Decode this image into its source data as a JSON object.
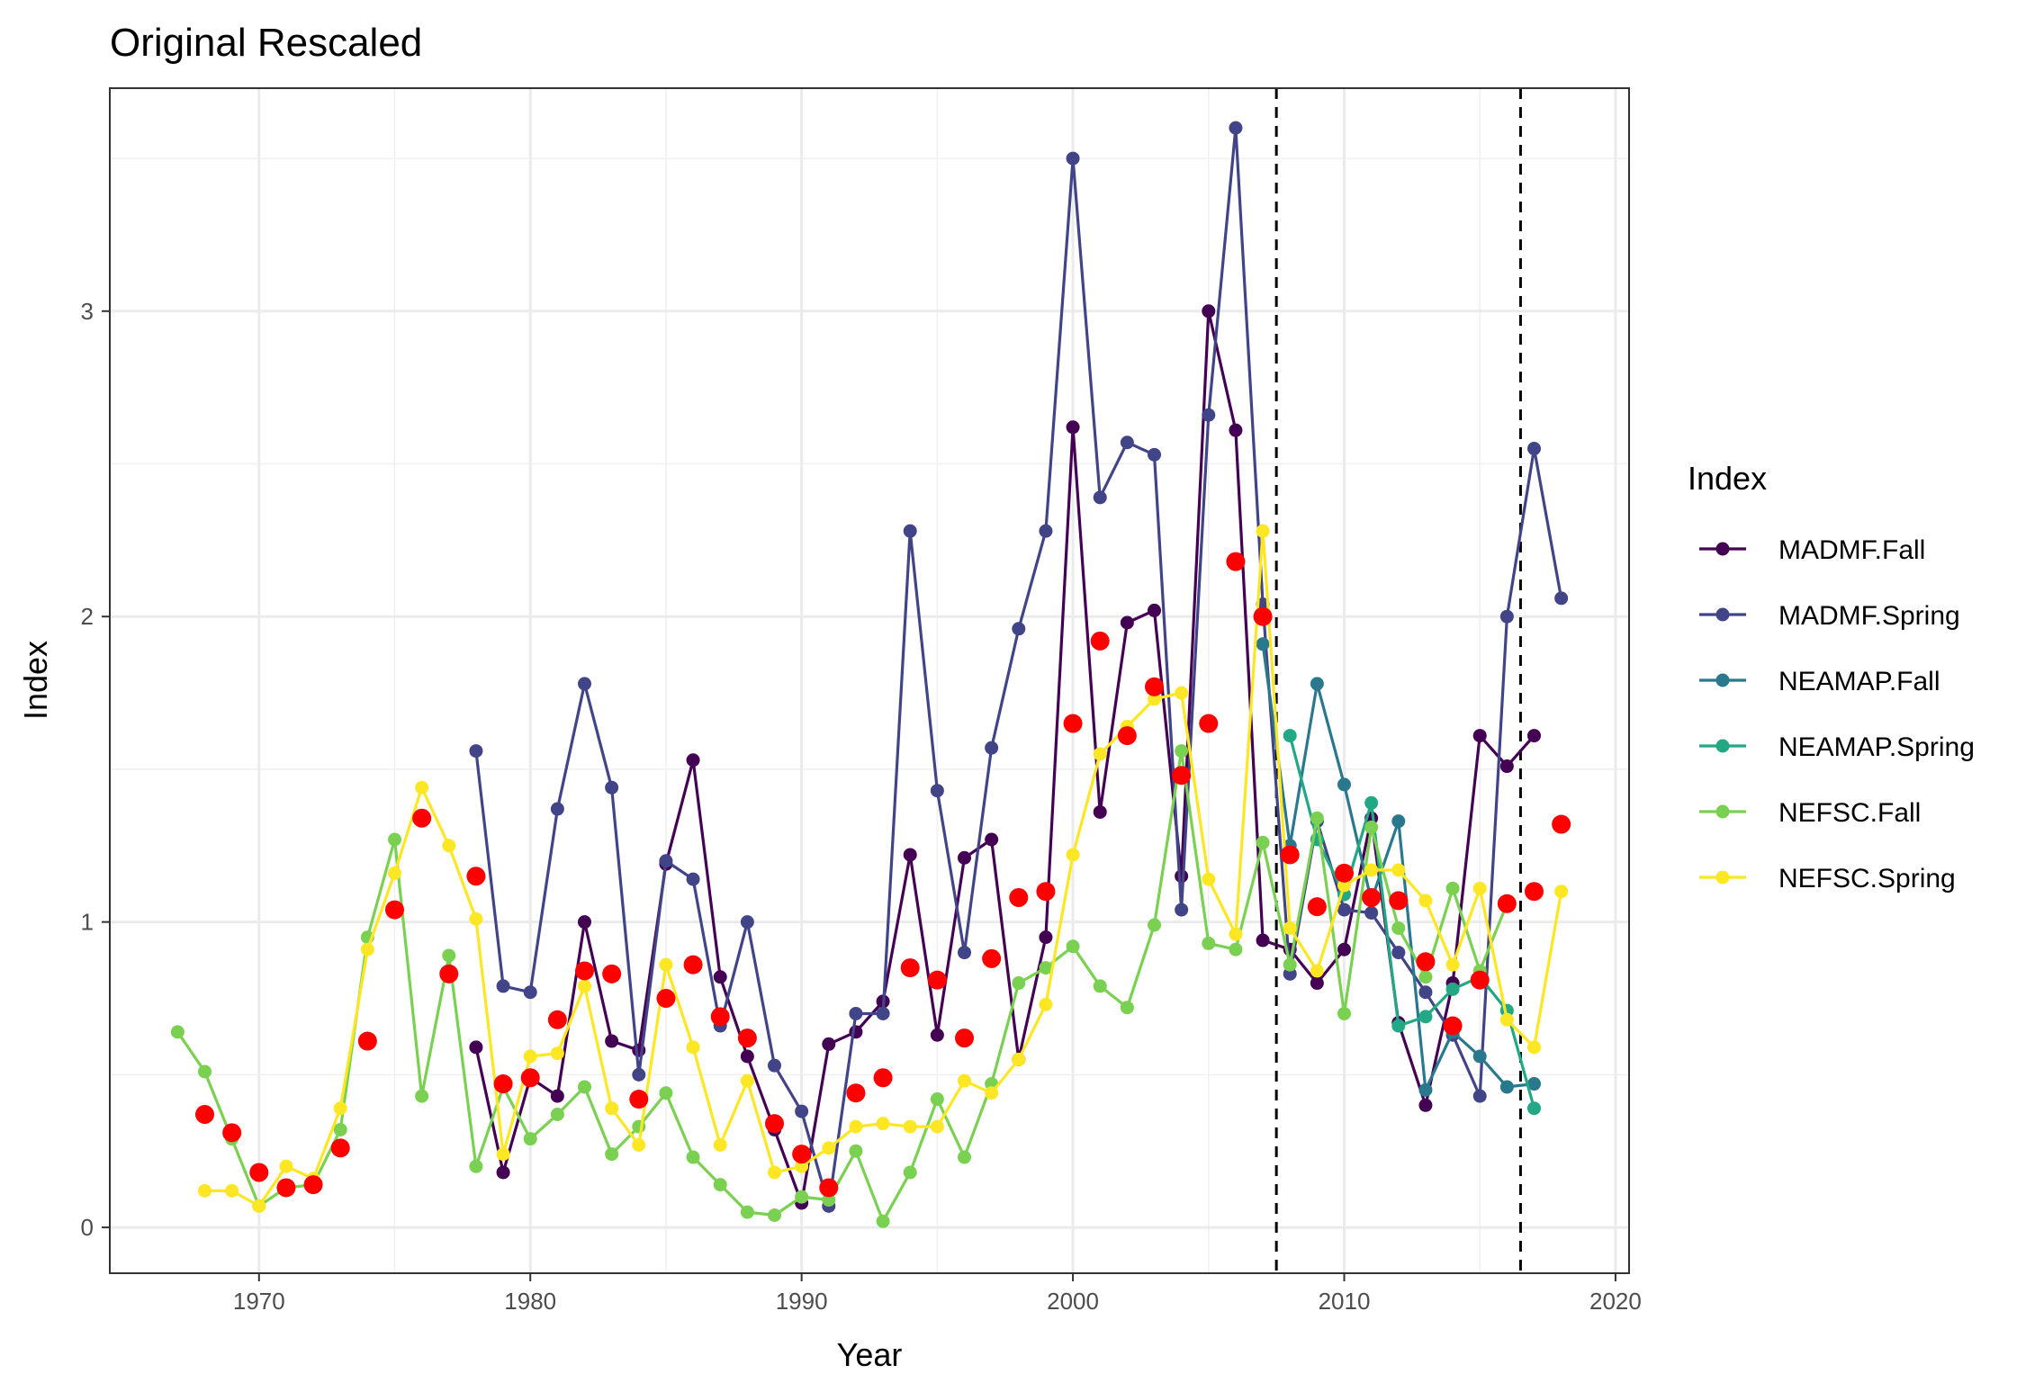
{
  "chart_data": {
    "type": "line",
    "title": "Original Rescaled",
    "xlabel": "Year",
    "ylabel": "Index",
    "xlim": [
      1964.5,
      2020.5
    ],
    "ylim": [
      -0.15,
      3.73
    ],
    "x_ticks": [
      1970,
      1980,
      1990,
      2000,
      2010,
      2020
    ],
    "y_ticks": [
      0,
      1,
      2,
      3
    ],
    "grid": true,
    "vlines": [
      2007.5,
      2016.5
    ],
    "legend": {
      "title": "Index",
      "position": "right",
      "entries": [
        "MADMF.Fall",
        "MADMF.Spring",
        "NEAMAP.Fall",
        "NEAMAP.Spring",
        "NEFSC.Fall",
        "NEFSC.Spring"
      ]
    },
    "series": [
      {
        "name": "MADMF.Fall",
        "color": "#440154",
        "x": [
          1978,
          1979,
          1980,
          1981,
          1982,
          1983,
          1984,
          1985,
          1986,
          1987,
          1988,
          1989,
          1990,
          1991,
          1992,
          1993,
          1994,
          1995,
          1996,
          1997,
          1998,
          1999,
          2000,
          2001,
          2002,
          2003,
          2004,
          2005,
          2006,
          2007,
          2008,
          2009,
          2010,
          2011,
          2012,
          2013,
          2014,
          2015,
          2016,
          2017
        ],
        "y": [
          0.59,
          0.18,
          0.49,
          0.43,
          1.0,
          0.61,
          0.58,
          1.19,
          1.53,
          0.82,
          0.56,
          0.32,
          0.08,
          0.6,
          0.64,
          0.74,
          1.22,
          0.63,
          1.21,
          1.27,
          0.55,
          0.95,
          2.62,
          1.36,
          1.98,
          2.02,
          1.15,
          3.0,
          2.61,
          0.94,
          0.91,
          0.8,
          0.91,
          1.34,
          0.67,
          0.4,
          0.8,
          1.61,
          1.51,
          1.61
        ]
      },
      {
        "name": "MADMF.Spring",
        "color": "#414487",
        "x": [
          1978,
          1979,
          1980,
          1981,
          1982,
          1983,
          1984,
          1985,
          1986,
          1987,
          1988,
          1989,
          1990,
          1991,
          1992,
          1993,
          1994,
          1995,
          1996,
          1997,
          1998,
          1999,
          2000,
          2001,
          2002,
          2003,
          2004,
          2005,
          2006,
          2007,
          2008,
          2009,
          2010,
          2011,
          2012,
          2013,
          2014,
          2015,
          2016,
          2017,
          2018
        ],
        "y": [
          1.56,
          0.79,
          0.77,
          1.37,
          1.78,
          1.44,
          0.5,
          1.2,
          1.14,
          0.66,
          1.0,
          0.53,
          0.38,
          0.07,
          0.7,
          0.7,
          2.28,
          1.43,
          0.9,
          1.57,
          1.96,
          2.28,
          3.5,
          2.39,
          2.57,
          2.53,
          1.04,
          2.66,
          3.6,
          2.04,
          0.83,
          1.33,
          1.04,
          1.03,
          0.9,
          0.77,
          0.63,
          0.43,
          2.0,
          2.55,
          2.06
        ]
      },
      {
        "name": "NEAMAP.Fall",
        "color": "#2A788E",
        "x": [
          2007,
          2008,
          2009,
          2010,
          2011,
          2012,
          2013,
          2014,
          2015,
          2016,
          2017
        ],
        "y": [
          1.91,
          1.25,
          1.78,
          1.45,
          1.07,
          1.33,
          0.45,
          0.64,
          0.56,
          0.46,
          0.47
        ]
      },
      {
        "name": "NEAMAP.Spring",
        "color": "#22A884",
        "x": [
          2008,
          2009,
          2010,
          2011,
          2012,
          2013,
          2014,
          2015,
          2016,
          2017
        ],
        "y": [
          1.61,
          1.27,
          1.09,
          1.39,
          0.66,
          0.69,
          0.78,
          0.82,
          0.71,
          0.39
        ]
      },
      {
        "name": "NEFSC.Fall",
        "color": "#7AD151",
        "x": [
          1967,
          1968,
          1969,
          1970,
          1971,
          1972,
          1973,
          1974,
          1975,
          1976,
          1977,
          1978,
          1979,
          1980,
          1981,
          1982,
          1983,
          1984,
          1985,
          1986,
          1987,
          1988,
          1989,
          1990,
          1991,
          1992,
          1993,
          1994,
          1995,
          1996,
          1997,
          1998,
          1999,
          2000,
          2001,
          2002,
          2003,
          2004,
          2005,
          2006,
          2007,
          2008,
          2009,
          2010,
          2011,
          2012,
          2013,
          2014,
          2015,
          2016
        ],
        "y": [
          0.64,
          0.51,
          0.29,
          0.07,
          0.13,
          0.14,
          0.32,
          0.95,
          1.27,
          0.43,
          0.89,
          0.2,
          0.46,
          0.29,
          0.37,
          0.46,
          0.24,
          0.33,
          0.44,
          0.23,
          0.14,
          0.05,
          0.04,
          0.1,
          0.09,
          0.25,
          0.02,
          0.18,
          0.42,
          0.23,
          0.47,
          0.8,
          0.85,
          0.92,
          0.79,
          0.72,
          0.99,
          1.56,
          0.93,
          0.91,
          1.26,
          0.86,
          1.34,
          0.7,
          1.31,
          0.98,
          0.82,
          1.11,
          0.84,
          1.06
        ]
      },
      {
        "name": "NEFSC.Spring",
        "color": "#FDE725",
        "x": [
          1968,
          1969,
          1970,
          1971,
          1972,
          1973,
          1974,
          1975,
          1976,
          1977,
          1978,
          1979,
          1980,
          1981,
          1982,
          1983,
          1984,
          1985,
          1986,
          1987,
          1988,
          1989,
          1990,
          1991,
          1992,
          1993,
          1994,
          1995,
          1996,
          1997,
          1998,
          1999,
          2000,
          2001,
          2002,
          2003,
          2004,
          2005,
          2006,
          2007,
          2008,
          2009,
          2010,
          2011,
          2012,
          2013,
          2014,
          2015,
          2016,
          2017,
          2018
        ],
        "y": [
          0.12,
          0.12,
          0.07,
          0.2,
          0.16,
          0.39,
          0.91,
          1.16,
          1.44,
          1.25,
          1.01,
          0.24,
          0.56,
          0.57,
          0.79,
          0.39,
          0.27,
          0.86,
          0.59,
          0.27,
          0.48,
          0.18,
          0.2,
          0.26,
          0.33,
          0.34,
          0.33,
          0.33,
          0.48,
          0.44,
          0.55,
          0.73,
          1.22,
          1.55,
          1.64,
          1.73,
          1.75,
          1.14,
          0.96,
          2.28,
          0.98,
          0.84,
          1.12,
          1.17,
          1.17,
          1.07,
          0.86,
          1.11,
          0.68,
          0.59,
          1.1
        ]
      }
    ],
    "mean_points": {
      "color": "#FF0000",
      "x": [
        1968,
        1969,
        1970,
        1971,
        1972,
        1973,
        1974,
        1975,
        1976,
        1977,
        1978,
        1979,
        1980,
        1981,
        1982,
        1983,
        1984,
        1985,
        1986,
        1987,
        1988,
        1989,
        1990,
        1991,
        1992,
        1993,
        1994,
        1995,
        1996,
        1997,
        1998,
        1999,
        2000,
        2001,
        2002,
        2003,
        2004,
        2005,
        2006,
        2007,
        2008,
        2009,
        2010,
        2011,
        2012,
        2013,
        2014,
        2015,
        2016,
        2017,
        2018
      ],
      "y": [
        0.37,
        0.31,
        0.18,
        0.13,
        0.14,
        0.26,
        0.61,
        1.04,
        1.34,
        0.83,
        1.15,
        0.47,
        0.49,
        0.68,
        0.84,
        0.83,
        0.42,
        0.75,
        0.86,
        0.69,
        0.62,
        0.34,
        0.24,
        0.13,
        0.44,
        0.49,
        0.85,
        0.81,
        0.62,
        0.88,
        1.08,
        1.1,
        1.65,
        1.92,
        1.61,
        1.77,
        1.48,
        1.65,
        2.18,
        2.0,
        1.22,
        1.05,
        1.16,
        1.08,
        1.07,
        0.87,
        0.66,
        0.81,
        1.06,
        1.1,
        1.32
      ]
    }
  }
}
